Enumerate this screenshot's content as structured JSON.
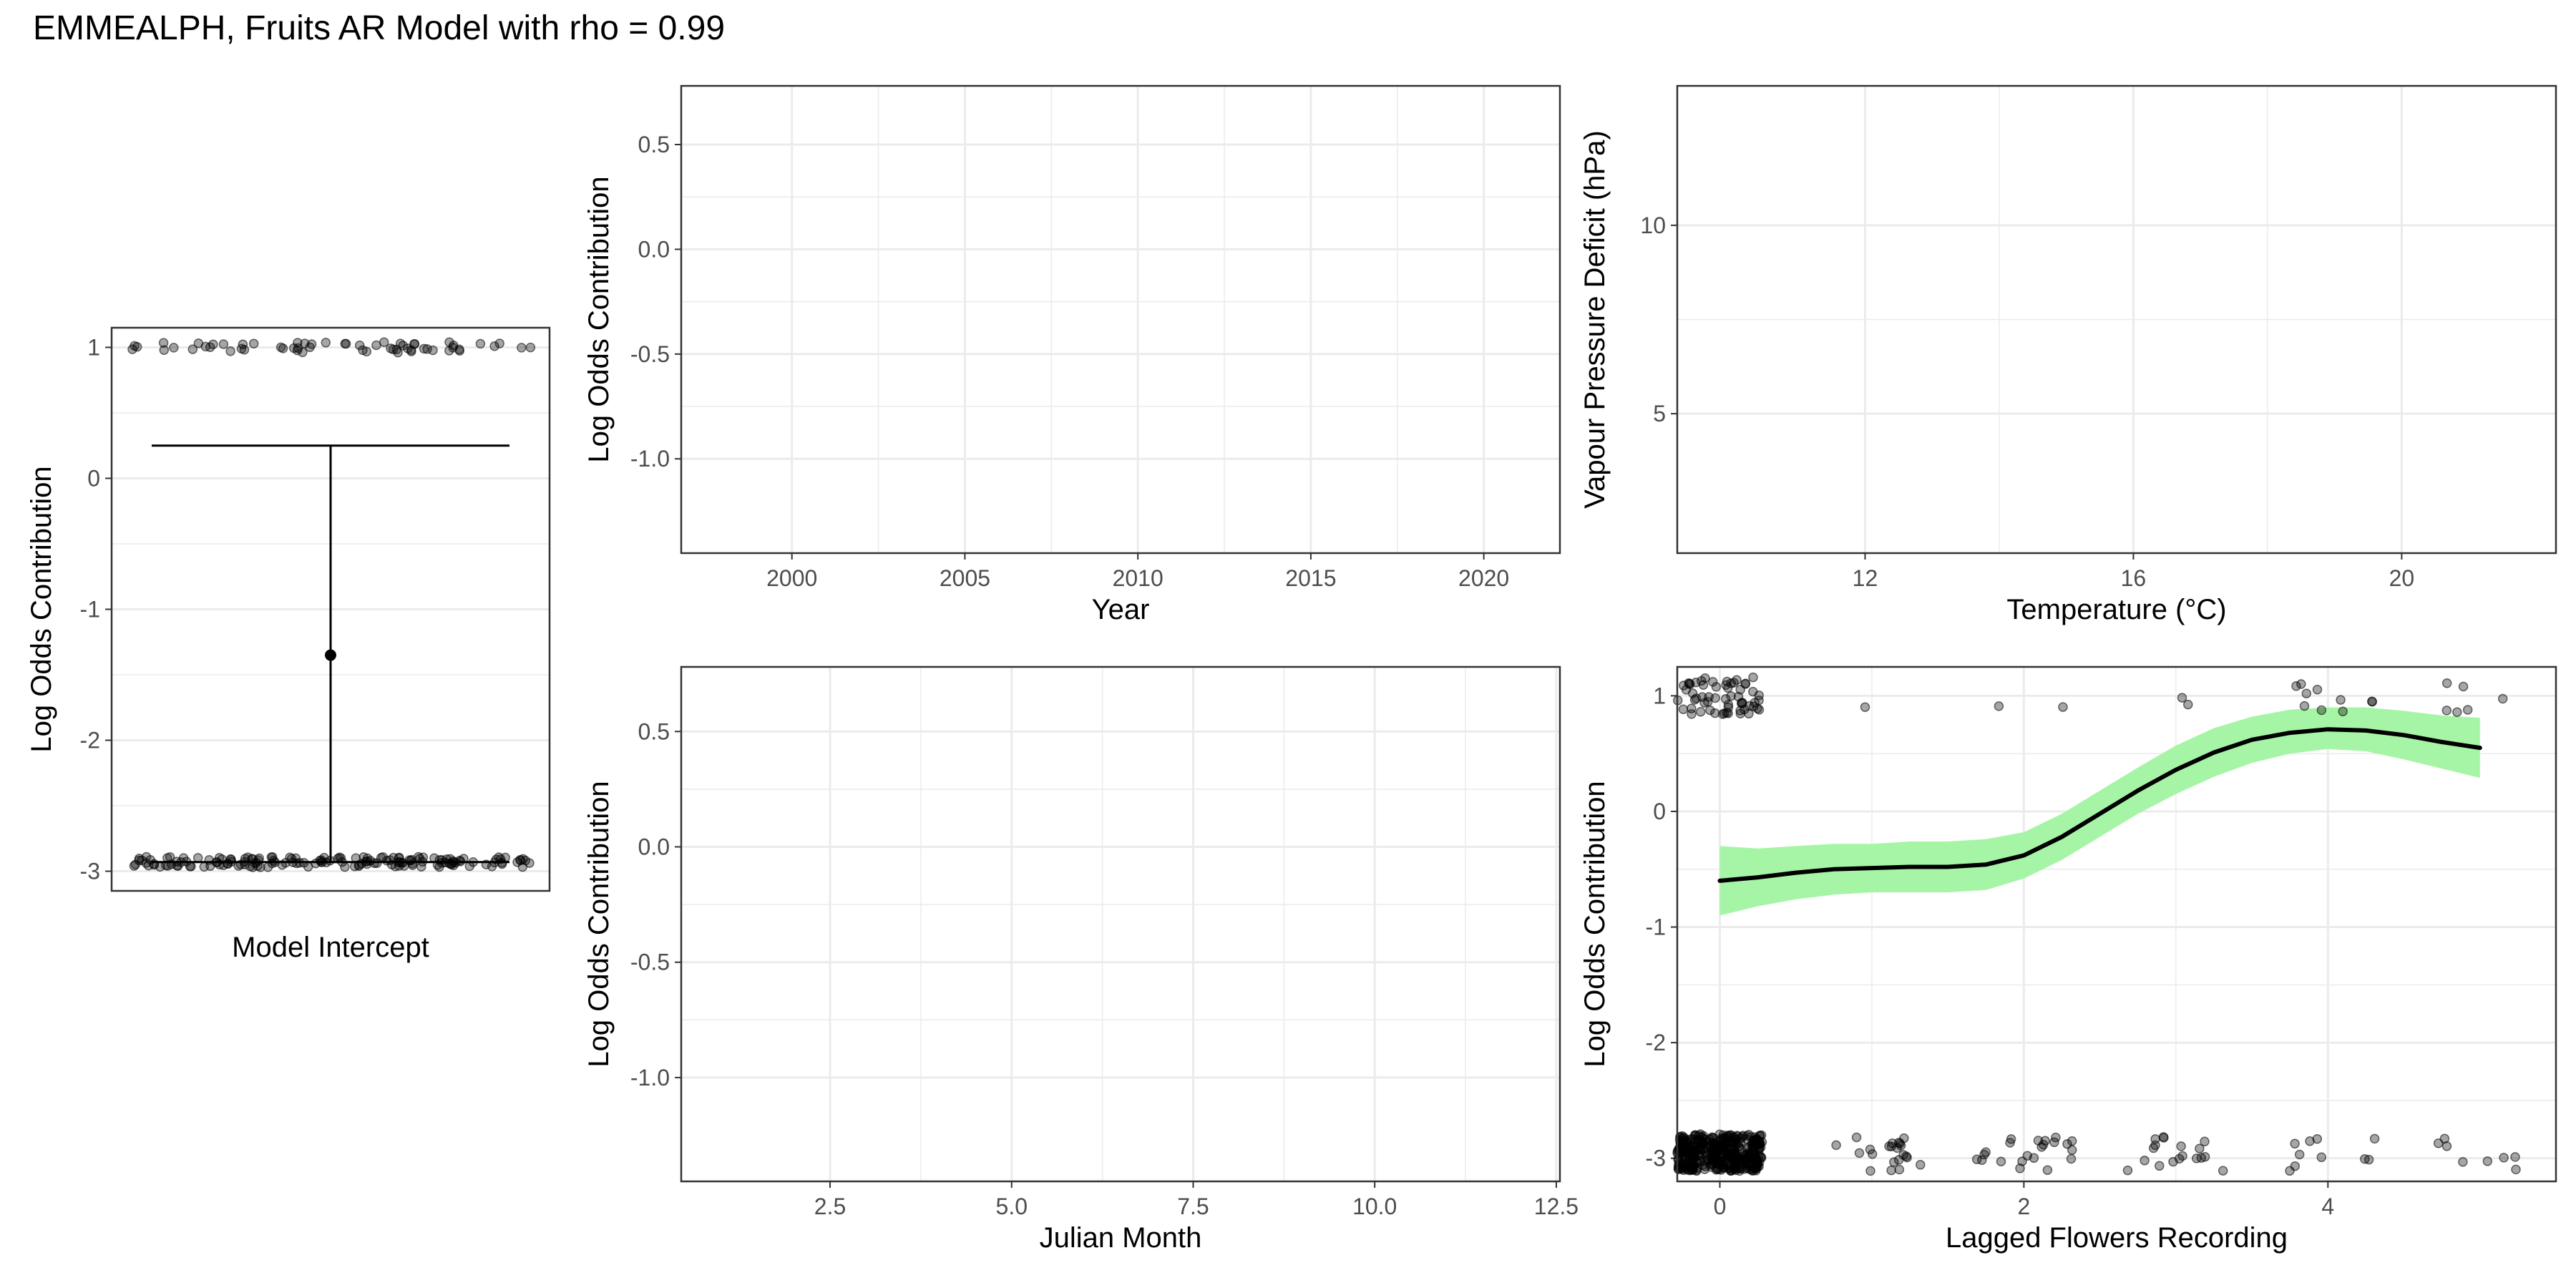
{
  "title": "EMMEALPH, Fruits AR Model with rho = 0.99",
  "colors": {
    "ribbon": "#a6f5a6",
    "line": "#000000",
    "point": "#000000",
    "grid": "#ebebeb",
    "border": "#333333"
  },
  "chart_data": [
    {
      "id": "intercept",
      "type": "scatter",
      "xlabel": "Model Intercept",
      "ylabel": "Log Odds Contribution",
      "ylim": [
        -3.15,
        1.15
      ],
      "yticks": [
        1,
        0,
        -1,
        -2,
        -3
      ],
      "jitter_levels": [
        1.0,
        -2.93
      ],
      "jitter_counts": [
        60,
        160
      ],
      "jitter_spread_y": 0.08,
      "estimate": -1.35,
      "interval": [
        -2.93,
        0.25
      ]
    },
    {
      "id": "year",
      "type": "line",
      "xlabel": "Year",
      "ylabel": "Log Odds Contribution",
      "xlim": [
        1996.8,
        2022.2
      ],
      "xticks": [
        2000,
        2005,
        2010,
        2015,
        2020
      ],
      "ylim": [
        -1.45,
        0.78
      ],
      "yticks": [
        0.5,
        0.0,
        -0.5,
        -1.0
      ],
      "ytick_labels": [
        "0.5",
        "0.0",
        "-0.5",
        "-1.0"
      ]
    },
    {
      "id": "temp_vpd",
      "type": "heatmap",
      "xlabel": "Temperature (°C)",
      "ylabel": "Vapour Pressure Deficit (hPa)",
      "xlim": [
        9.2,
        22.3
      ],
      "xticks": [
        12,
        16,
        20
      ],
      "ylim": [
        1.3,
        13.7
      ],
      "yticks": [
        10,
        5
      ]
    },
    {
      "id": "month",
      "type": "line",
      "xlabel": "Julian Month",
      "ylabel": "Log Odds Contribution",
      "xlim": [
        0.45,
        12.55
      ],
      "xticks": [
        2.5,
        5.0,
        7.5,
        10.0,
        12.5
      ],
      "xtick_labels": [
        "2.5",
        "5.0",
        "7.5",
        "10.0",
        "12.5"
      ],
      "ylim": [
        -1.45,
        0.78
      ],
      "yticks": [
        0.5,
        0.0,
        -0.5,
        -1.0
      ],
      "ytick_labels": [
        "0.5",
        "0.0",
        "-0.5",
        "-1.0"
      ]
    },
    {
      "id": "lagged_flowers",
      "type": "line",
      "xlabel": "Lagged Flowers Recording",
      "ylabel": "Log Odds Contribution",
      "xlim": [
        -0.28,
        5.5
      ],
      "xticks": [
        0,
        2,
        4
      ],
      "ylim": [
        -3.2,
        1.25
      ],
      "yticks": [
        1,
        0,
        -1,
        -2,
        -3
      ],
      "fit": {
        "x": [
          0,
          0.25,
          0.5,
          0.75,
          1,
          1.25,
          1.5,
          1.75,
          2,
          2.25,
          2.5,
          2.75,
          3,
          3.25,
          3.5,
          3.75,
          4,
          4.25,
          4.5,
          4.75,
          5
        ],
        "y": [
          -0.6,
          -0.57,
          -0.53,
          -0.5,
          -0.49,
          -0.48,
          -0.48,
          -0.46,
          -0.38,
          -0.22,
          -0.02,
          0.18,
          0.36,
          0.51,
          0.62,
          0.68,
          0.71,
          0.7,
          0.66,
          0.6,
          0.55
        ],
        "lower": [
          -0.9,
          -0.82,
          -0.76,
          -0.72,
          -0.7,
          -0.7,
          -0.7,
          -0.68,
          -0.58,
          -0.42,
          -0.22,
          -0.02,
          0.15,
          0.3,
          0.42,
          0.5,
          0.54,
          0.52,
          0.45,
          0.37,
          0.29
        ],
        "upper": [
          -0.3,
          -0.32,
          -0.3,
          -0.28,
          -0.28,
          -0.26,
          -0.26,
          -0.24,
          -0.18,
          -0.02,
          0.18,
          0.38,
          0.57,
          0.72,
          0.82,
          0.88,
          0.9,
          0.9,
          0.87,
          0.83,
          0.81
        ]
      },
      "jitter_columns": [
        {
          "x": 0,
          "spread_x": 0.28,
          "y_top": 1.0,
          "n_top": 60,
          "y_bot": -2.95,
          "n_bot": 400
        },
        {
          "x": 1,
          "spread_x": 0.32,
          "y_top": 1.0,
          "n_top": 1,
          "y_bot": -2.95,
          "n_bot": 22
        },
        {
          "x": 2,
          "spread_x": 0.32,
          "y_top": 1.0,
          "n_top": 2,
          "y_bot": -2.95,
          "n_bot": 22
        },
        {
          "x": 3,
          "spread_x": 0.32,
          "y_top": 1.0,
          "n_top": 2,
          "y_bot": -2.95,
          "n_bot": 18
        },
        {
          "x": 4,
          "spread_x": 0.32,
          "y_top": 1.0,
          "n_top": 10,
          "y_bot": -2.95,
          "n_bot": 10
        },
        {
          "x": 5,
          "spread_x": 0.3,
          "y_top": 1.0,
          "n_top": 6,
          "y_bot": -2.95,
          "n_bot": 8
        }
      ],
      "jitter_spread_y": 0.16
    }
  ]
}
